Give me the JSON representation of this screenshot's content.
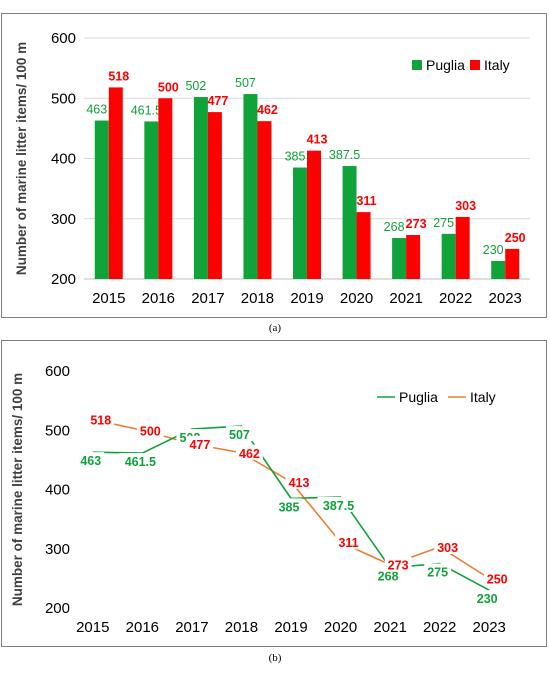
{
  "figure": {
    "caption_a": "(a)",
    "caption_b": "(b)"
  },
  "chart_data": [
    {
      "type": "bar",
      "categories": [
        "2015",
        "2016",
        "2017",
        "2018",
        "2019",
        "2020",
        "2021",
        "2022",
        "2023"
      ],
      "series": [
        {
          "name": "Puglia",
          "color": "#10a33a",
          "values": [
            463,
            461.5,
            502,
            507,
            385,
            387.5,
            268,
            275,
            230
          ],
          "labels": [
            "463",
            "461.5",
            "502",
            "507",
            "385",
            "387.5",
            "268",
            "275",
            "230"
          ]
        },
        {
          "name": "Italy",
          "color": "#ff0000",
          "values": [
            518,
            500,
            477,
            462,
            413,
            311,
            273,
            303,
            250
          ],
          "labels": [
            "518",
            "500",
            "477",
            "462",
            "413",
            "311",
            "273",
            "303",
            "250"
          ]
        }
      ],
      "ylabel": "Number of marine litter items/ 100 m",
      "ylim": [
        200,
        600
      ],
      "yticks": [
        "200",
        "300",
        "400",
        "500",
        "600"
      ],
      "legend_position": "top-right",
      "grid": true
    },
    {
      "type": "line",
      "categories": [
        "2015",
        "2016",
        "2017",
        "2018",
        "2019",
        "2020",
        "2021",
        "2022",
        "2023"
      ],
      "series": [
        {
          "name": "Puglia",
          "color": "#10a33a",
          "label_color": "#10a33a",
          "values": [
            463,
            461.5,
            502,
            507,
            385,
            387.5,
            268,
            275,
            230
          ],
          "labels": [
            "463",
            "461.5",
            "502",
            "507",
            "385",
            "387.5",
            "268",
            "275",
            "230"
          ]
        },
        {
          "name": "Italy",
          "color": "#ed7d31",
          "label_color": "#ff0000",
          "values": [
            518,
            500,
            477,
            462,
            413,
            311,
            273,
            303,
            250
          ],
          "labels": [
            "518",
            "500",
            "477",
            "462",
            "413",
            "311",
            "273",
            "303",
            "250"
          ]
        }
      ],
      "ylabel": "Number of marine litter items/ 100 m",
      "ylim": [
        200,
        600
      ],
      "yticks": [
        "200",
        "300",
        "400",
        "500",
        "600"
      ],
      "legend_position": "top-right",
      "grid": false
    }
  ]
}
